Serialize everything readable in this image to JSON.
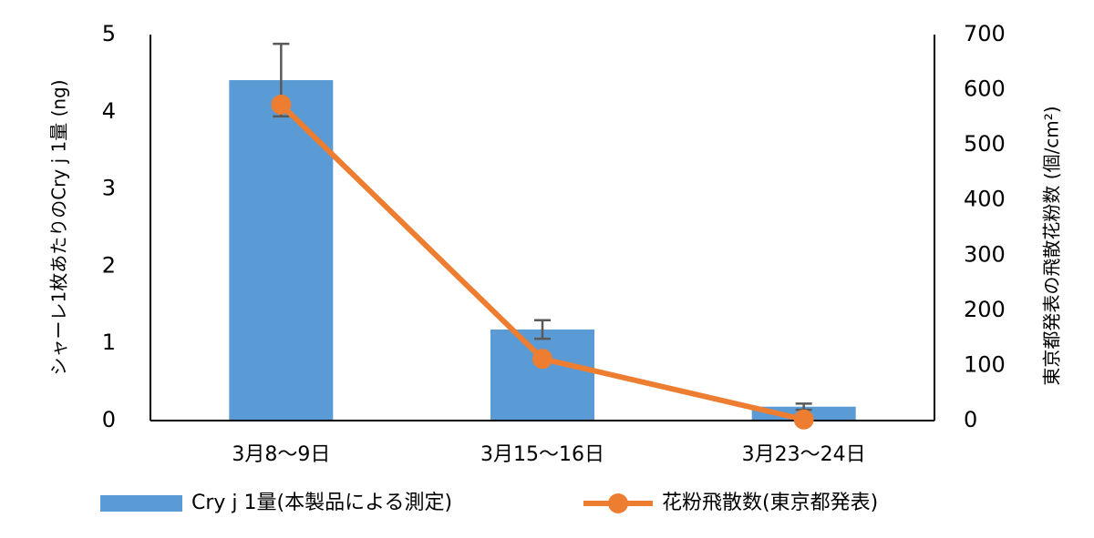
{
  "chart_data": {
    "type": "bar_line",
    "categories": [
      "3月8〜9日",
      "3月15〜16日",
      "3月23〜24日"
    ],
    "y_label": "シャーレ1枚あたりのCry j 1量 (ng)",
    "y2_label": "東京都発表の飛散花粉数 (個/cm²)",
    "ylim": [
      0,
      5
    ],
    "yticks": [
      0,
      1,
      2,
      3,
      4,
      5
    ],
    "y2lim": [
      0,
      700
    ],
    "y2ticks": [
      0,
      100,
      200,
      300,
      400,
      500,
      600,
      700
    ],
    "series": [
      {
        "name": "Cry j 1量(本製品による測定)",
        "type": "bar",
        "color": "#5b9bd5",
        "values": [
          4.41,
          1.18,
          0.18
        ],
        "errors": [
          0.47,
          0.12,
          0.04
        ]
      },
      {
        "name": "花粉飛散数(東京都発表)",
        "type": "line",
        "axis": "y2",
        "color": "#ed7d31",
        "values": [
          573,
          112,
          2
        ]
      }
    ]
  }
}
